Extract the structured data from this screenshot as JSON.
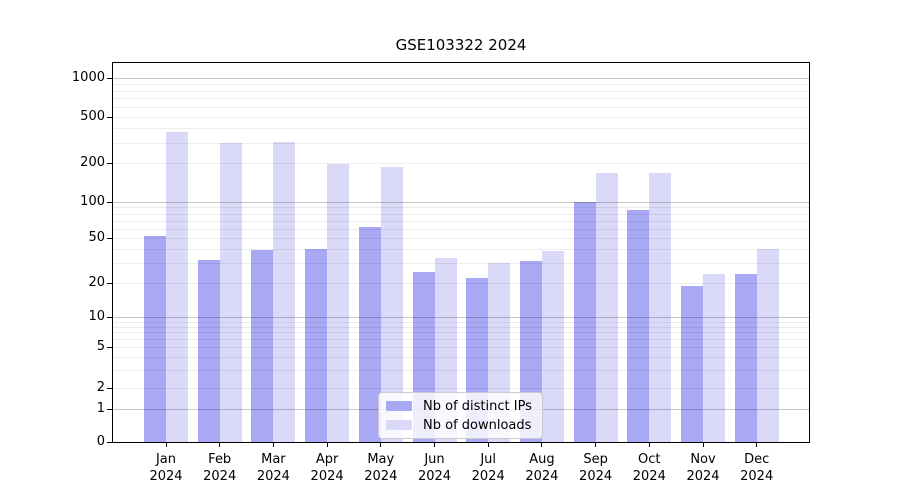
{
  "chart_data": {
    "type": "bar",
    "title": "GSE103322 2024",
    "categories": [
      {
        "month": "Jan",
        "year": "2024"
      },
      {
        "month": "Feb",
        "year": "2024"
      },
      {
        "month": "Mar",
        "year": "2024"
      },
      {
        "month": "Apr",
        "year": "2024"
      },
      {
        "month": "May",
        "year": "2024"
      },
      {
        "month": "Jun",
        "year": "2024"
      },
      {
        "month": "Jul",
        "year": "2024"
      },
      {
        "month": "Aug",
        "year": "2024"
      },
      {
        "month": "Sep",
        "year": "2024"
      },
      {
        "month": "Oct",
        "year": "2024"
      },
      {
        "month": "Nov",
        "year": "2024"
      },
      {
        "month": "Dec",
        "year": "2024"
      }
    ],
    "series": [
      {
        "name": "Nb of distinct IPs",
        "color": "#a8a8f4",
        "values": [
          52,
          32,
          39,
          40,
          62,
          25,
          22,
          31,
          100,
          86,
          19,
          24
        ]
      },
      {
        "name": "Nb of downloads",
        "color": "#dadaf8",
        "values": [
          370,
          300,
          305,
          197,
          185,
          33,
          30,
          38,
          168,
          168,
          24,
          40
        ]
      }
    ],
    "yticks": [
      0,
      1,
      2,
      5,
      10,
      20,
      50,
      100,
      200,
      500,
      1000
    ],
    "ylim": [
      0,
      1000
    ],
    "yscale": "symlog",
    "grid": "both",
    "legend_position": "lower center"
  }
}
